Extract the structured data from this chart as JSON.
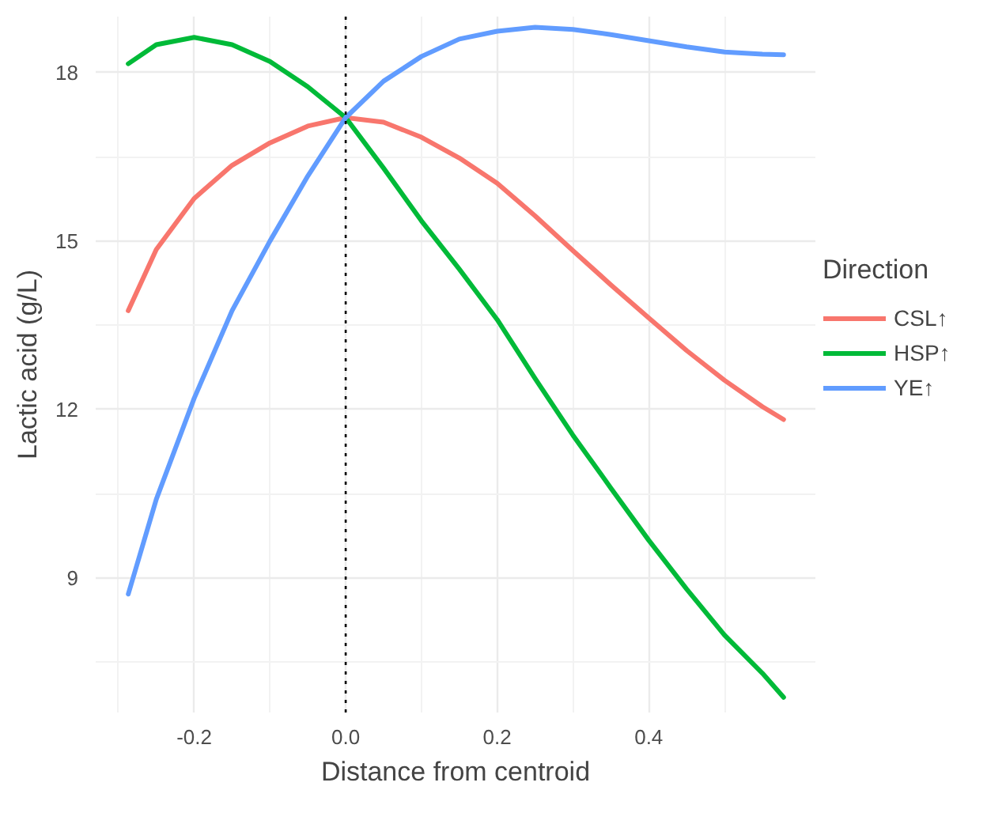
{
  "chart_data": {
    "type": "line",
    "xlabel": "Distance from centroid",
    "ylabel": "Lactic acid (g/L)",
    "legend_title": "Direction",
    "x": [
      -0.287,
      -0.25,
      -0.2,
      -0.15,
      -0.1,
      -0.05,
      0,
      0.05,
      0.1,
      0.15,
      0.2,
      0.25,
      0.3,
      0.35,
      0.4,
      0.45,
      0.5,
      0.55,
      0.578
    ],
    "series": [
      {
        "name": "CSL↑",
        "color": "#f8766d",
        "values": [
          13.76,
          14.85,
          15.76,
          16.35,
          16.75,
          17.05,
          17.2,
          17.12,
          16.85,
          16.48,
          16.03,
          15.45,
          14.83,
          14.22,
          13.63,
          13.05,
          12.52,
          12.05,
          11.82
        ]
      },
      {
        "name": "HSP↑",
        "color": "#00ba38",
        "values": [
          18.16,
          18.5,
          18.63,
          18.5,
          18.2,
          17.75,
          17.2,
          16.3,
          15.36,
          14.5,
          13.6,
          12.55,
          11.54,
          10.6,
          9.67,
          8.8,
          7.98,
          7.3,
          6.87
        ]
      },
      {
        "name": "YE↑",
        "color": "#619cff",
        "values": [
          8.71,
          10.4,
          12.2,
          13.76,
          15.0,
          16.16,
          17.2,
          17.85,
          18.29,
          18.6,
          18.74,
          18.81,
          18.77,
          18.68,
          18.57,
          18.46,
          18.37,
          18.33,
          18.32
        ]
      }
    ],
    "xlim": [
      -0.33,
      0.62
    ],
    "ylim": [
      6.6,
      19.0
    ],
    "xticks": [
      {
        "value": -0.2,
        "label": "-0.2"
      },
      {
        "value": 0,
        "label": "0.0"
      },
      {
        "value": 0.2,
        "label": "0.2"
      },
      {
        "value": 0.4,
        "label": "0.4"
      }
    ],
    "yticks": [
      9,
      12,
      15,
      18
    ],
    "ref_lines": [
      {
        "axis": "x",
        "value": 0,
        "color": "#000000",
        "line_style": "dotted"
      }
    ],
    "grid": true,
    "legend": "right",
    "line_style": "solid"
  }
}
